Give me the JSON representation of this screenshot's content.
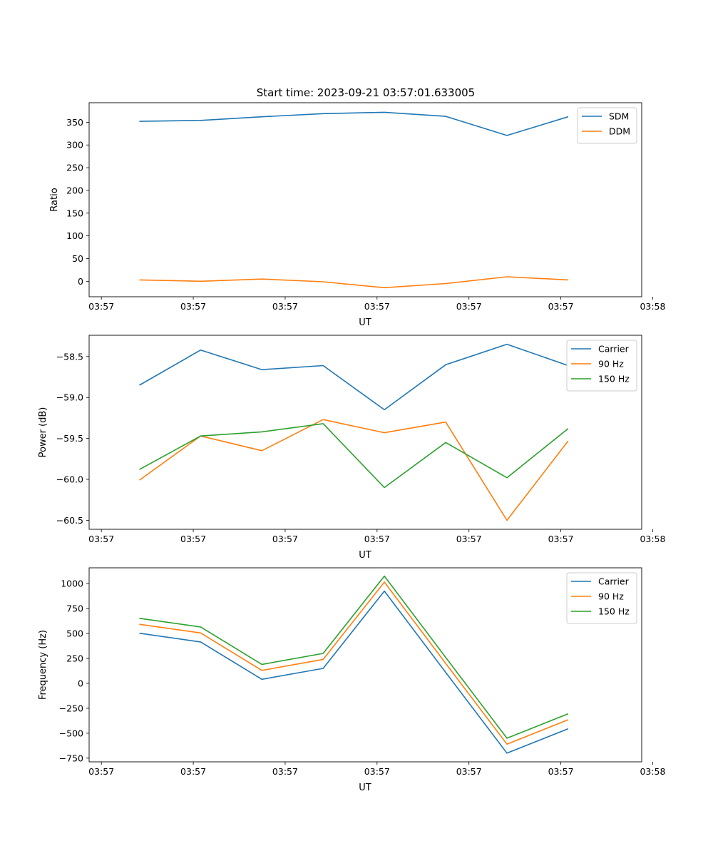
{
  "title": "Start time: 2023-09-21 03:57:01.633005",
  "colors": {
    "blue": "#1f77b4",
    "orange": "#ff7f0e",
    "green": "#2ca02c"
  },
  "chart_data": [
    {
      "type": "line",
      "xlabel": "UT",
      "ylabel": "Ratio",
      "x": [
        1,
        2,
        3,
        4,
        5,
        6,
        7,
        8
      ],
      "xlim": [
        0.18,
        9.2
      ],
      "xticks": [
        0.38,
        1.88,
        3.38,
        4.88,
        6.38,
        7.88,
        9.38
      ],
      "xtick_labels": [
        "03:57",
        "03:57",
        "03:57",
        "03:57",
        "03:57",
        "03:57",
        "03:57"
      ],
      "xtick_labels_extra": [
        {
          "x": 9.38,
          "label": "03:58"
        }
      ],
      "ylim": [
        -34,
        393
      ],
      "yticks": [
        0,
        50,
        100,
        150,
        200,
        250,
        300,
        350
      ],
      "ytick_labels": [
        "0",
        "50",
        "100",
        "150",
        "200",
        "250",
        "300",
        "350"
      ],
      "legend_position": "top-right",
      "series": [
        {
          "name": "SDM",
          "color": "#1f77b4",
          "values": [
            352,
            354,
            362,
            369,
            372,
            363,
            321,
            362
          ]
        },
        {
          "name": "DDM",
          "color": "#ff7f0e",
          "values": [
            3,
            0,
            5,
            -1,
            -14,
            -5,
            10,
            3
          ]
        }
      ]
    },
    {
      "type": "line",
      "xlabel": "UT",
      "ylabel": "Power (dB)",
      "x": [
        1,
        2,
        3,
        4,
        5,
        6,
        7,
        8
      ],
      "xlim": [
        0.18,
        9.2
      ],
      "xticks": [
        0.38,
        1.88,
        3.38,
        4.88,
        6.38,
        7.88,
        9.38
      ],
      "xtick_labels": [
        "03:57",
        "03:57",
        "03:57",
        "03:57",
        "03:57",
        "03:57",
        "03:57"
      ],
      "ylim": [
        -60.61,
        -58.24
      ],
      "yticks": [
        -60.5,
        -60.0,
        -59.5,
        -59.0,
        -58.5
      ],
      "ytick_labels": [
        "−60.5",
        "−60.0",
        "−59.5",
        "−59.0",
        "−58.5"
      ],
      "legend_position": "top-right",
      "series": [
        {
          "name": "Carrier",
          "color": "#1f77b4",
          "values": [
            -58.85,
            -58.42,
            -58.66,
            -58.61,
            -59.15,
            -58.6,
            -58.35,
            -58.61
          ]
        },
        {
          "name": "90 Hz",
          "color": "#ff7f0e",
          "values": [
            -60.01,
            -59.47,
            -59.65,
            -59.27,
            -59.43,
            -59.3,
            -60.5,
            -59.53
          ]
        },
        {
          "name": "150 Hz",
          "color": "#2ca02c",
          "values": [
            -59.88,
            -59.47,
            -59.42,
            -59.32,
            -60.1,
            -59.55,
            -59.98,
            -59.38
          ]
        }
      ]
    },
    {
      "type": "line",
      "xlabel": "UT",
      "ylabel": "Frequency (Hz)",
      "x": [
        1,
        2,
        3,
        4,
        5,
        6,
        7,
        8
      ],
      "xlim": [
        0.18,
        9.2
      ],
      "xticks": [
        0.38,
        1.88,
        3.38,
        4.88,
        6.38,
        7.88,
        9.38
      ],
      "xtick_labels": [
        "03:57",
        "03:57",
        "03:57",
        "03:57",
        "03:57",
        "03:57",
        "03:57"
      ],
      "ylim": [
        -787,
        1158
      ],
      "yticks": [
        -750,
        -500,
        -250,
        0,
        250,
        500,
        750,
        1000
      ],
      "ytick_labels": [
        "−750",
        "−500",
        "−250",
        "0",
        "250",
        "500",
        "750",
        "1000"
      ],
      "legend_position": "top-right",
      "series": [
        {
          "name": "Carrier",
          "color": "#1f77b4",
          "values": [
            502,
            415,
            40,
            150,
            925,
            110,
            -700,
            -455
          ]
        },
        {
          "name": "90 Hz",
          "color": "#ff7f0e",
          "values": [
            592,
            505,
            130,
            240,
            1015,
            200,
            -610,
            -365
          ]
        },
        {
          "name": "150 Hz",
          "color": "#2ca02c",
          "values": [
            652,
            565,
            190,
            300,
            1075,
            260,
            -550,
            -305
          ]
        }
      ]
    }
  ]
}
